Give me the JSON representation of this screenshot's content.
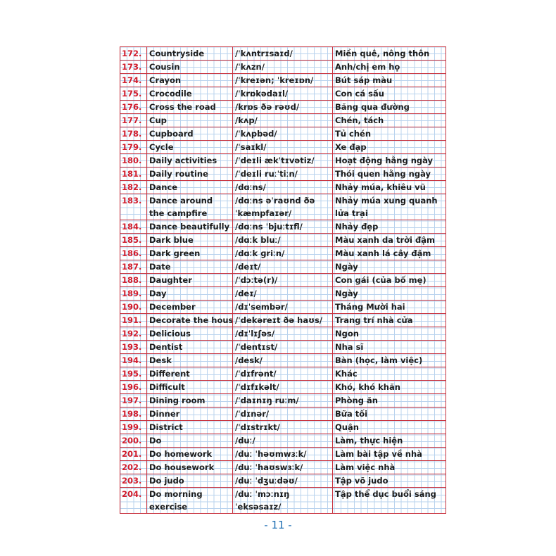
{
  "rows": [
    {
      "num": "172.",
      "word": "Countryside",
      "ipa": "/ˈkʌntrɪsaɪd/",
      "meaning": "Miền quê, nông thôn"
    },
    {
      "num": "173.",
      "word": "Cousin",
      "ipa": "/ˈkʌzn/",
      "meaning": "Anh/chị em họ"
    },
    {
      "num": "174.",
      "word": "Crayon",
      "ipa": "/ˈkreɪən; ˈkreɪɒn/",
      "meaning": "Bút sáp màu"
    },
    {
      "num": "175.",
      "word": "Crocodile",
      "ipa": "/ˈkrɒkədaɪl/",
      "meaning": "Con cá sấu"
    },
    {
      "num": "176.",
      "word": "Cross the road",
      "ipa": "/krɒs ðə rəʊd/",
      "meaning": "Băng qua đường"
    },
    {
      "num": "177.",
      "word": "Cup",
      "ipa": "/kʌp/",
      "meaning": "Chén, tách"
    },
    {
      "num": "178.",
      "word": "Cupboard",
      "ipa": "/ˈkʌpbəd/",
      "meaning": "Tủ chén"
    },
    {
      "num": "179.",
      "word": "Cycle",
      "ipa": "/ˈsaɪkl/",
      "meaning": "Xe đạp"
    },
    {
      "num": "180.",
      "word": "Daily activities",
      "ipa": "/ˈdeɪli ækˈtɪvətiz/",
      "meaning": "Hoạt động hằng ngày"
    },
    {
      "num": "181.",
      "word": "Daily routine",
      "ipa": "/ˈdeɪli ruːˈtiːn/",
      "meaning": "Thói quen hằng ngày"
    },
    {
      "num": "182.",
      "word": "Dance",
      "ipa": "/dɑːns/",
      "meaning": "Nhảy múa, khiêu vũ"
    },
    {
      "num": "183.",
      "word": "Dance around the campfire",
      "ipa": "/dɑːns əˈraʊnd ðə ˈkæmpfaɪər/",
      "meaning": "Nhảy múa xung quanh lửa trại"
    },
    {
      "num": "184.",
      "word": "Dance beautifully",
      "ipa": "/dɑːns ˈbjuːtɪfl/",
      "meaning": "Nhảy đẹp"
    },
    {
      "num": "185.",
      "word": "Dark blue",
      "ipa": "/dɑːk bluː/",
      "meaning": "Màu xanh da trời đậm"
    },
    {
      "num": "186.",
      "word": "Dark green",
      "ipa": "/dɑːk ɡriːn/",
      "meaning": "Màu xanh lá cây đậm"
    },
    {
      "num": "187.",
      "word": "Date",
      "ipa": "/deɪt/",
      "meaning": "Ngày"
    },
    {
      "num": "188.",
      "word": "Daughter",
      "ipa": "/ˈdɔːtə(r)/",
      "meaning": "Con gái (của bố mẹ)"
    },
    {
      "num": "189.",
      "word": "Day",
      "ipa": "/deɪ/",
      "meaning": "Ngày"
    },
    {
      "num": "190.",
      "word": "December",
      "ipa": "/dɪˈsembər/",
      "meaning": "Tháng Mười hai"
    },
    {
      "num": "191.",
      "word": "Decorate the house",
      "ipa": "/ˈdekəreɪt ðə haʊs/",
      "meaning": "Trang trí nhà cửa"
    },
    {
      "num": "192.",
      "word": "Delicious",
      "ipa": "/dɪˈlɪʃəs/",
      "meaning": "Ngon"
    },
    {
      "num": "193.",
      "word": "Dentist",
      "ipa": "/ˈdentɪst/",
      "meaning": "Nha sĩ"
    },
    {
      "num": "194.",
      "word": "Desk",
      "ipa": "/desk/",
      "meaning": "Bàn (học, làm việc)"
    },
    {
      "num": "195.",
      "word": "Different",
      "ipa": "/ˈdɪfrənt/",
      "meaning": "Khác"
    },
    {
      "num": "196.",
      "word": "Difficult",
      "ipa": "/ˈdɪfɪkəlt/",
      "meaning": "Khó, khó khăn"
    },
    {
      "num": "197.",
      "word": "Dining room",
      "ipa": "/ˈdaɪnɪŋ ruːm/",
      "meaning": "Phòng ăn"
    },
    {
      "num": "198.",
      "word": "Dinner",
      "ipa": "/ˈdɪnər/",
      "meaning": "Bữa tối"
    },
    {
      "num": "199.",
      "word": "District",
      "ipa": "/ˈdɪstrɪkt/",
      "meaning": "Quận"
    },
    {
      "num": "200.",
      "word": "Do",
      "ipa": "/duː/",
      "meaning": "Làm, thực hiện"
    },
    {
      "num": "201.",
      "word": "Do homework",
      "ipa": "/duː ˈhəʊmwɜːk/",
      "meaning": "Làm bài tập về nhà"
    },
    {
      "num": "202.",
      "word": "Do housework",
      "ipa": "/duː ˈhaʊswɜːk/",
      "meaning": "Làm việc nhà"
    },
    {
      "num": "203.",
      "word": "Do judo",
      "ipa": "/duː ˈdʒuːdəʊ/",
      "meaning": "Tập võ judo"
    },
    {
      "num": "204.",
      "word": "Do morning exercise",
      "ipa": "/duː ˈmɔːnɪŋ ˈeksəsaɪz/",
      "meaning": "Tập thể dục buổi sáng"
    }
  ],
  "page_number": "- 11 -"
}
